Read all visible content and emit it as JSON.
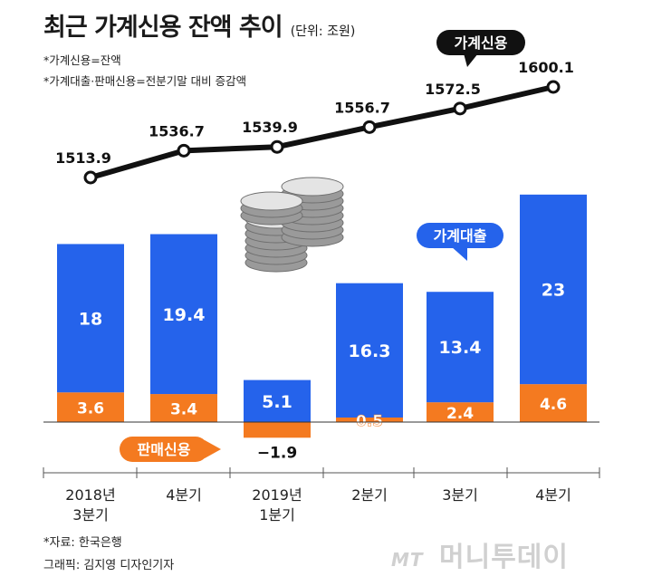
{
  "header": {
    "title": "최근 가계신용 잔액 추이",
    "unit": "(단위: 조원)",
    "notes": [
      "*가계신용=잔액",
      "*가계대출·판매신용=전분기말 대비 증감액"
    ]
  },
  "footer": {
    "source": "*자료: 한국은행",
    "credit": "그래픽: 김지영 디자인기자"
  },
  "watermark": {
    "logo": "MT",
    "text": "머니투데이"
  },
  "chart_data": {
    "type": "bar",
    "categories": [
      [
        "2018년",
        "3분기"
      ],
      [
        "4분기"
      ],
      [
        "2019년",
        "1분기"
      ],
      [
        "2분기"
      ],
      [
        "3분기"
      ],
      [
        "4분기"
      ]
    ],
    "series": [
      {
        "name": "가계대출",
        "values": [
          18,
          19.4,
          5.1,
          16.3,
          13.4,
          23
        ],
        "labels": [
          "18",
          "19.4",
          "5.1",
          "16.3",
          "13.4",
          "23"
        ],
        "color": "#2563eb"
      },
      {
        "name": "판매신용",
        "values": [
          3.6,
          3.4,
          -1.9,
          0.5,
          2.4,
          4.6
        ],
        "labels": [
          "3.6",
          "3.4",
          "−1.9",
          "0.5",
          "2.4",
          "4.6"
        ],
        "color": "#f47a20"
      }
    ],
    "line": {
      "name": "가계신용",
      "values": [
        1513.9,
        1536.7,
        1539.9,
        1556.7,
        1572.5,
        1600.1
      ],
      "labels": [
        "1513.9",
        "1536.7",
        "1539.9",
        "1556.7",
        "1572.5",
        "1600.1"
      ],
      "color": "#111111"
    },
    "callout_colors": {
      "가계신용": "#111111",
      "가계대출": "#2563eb",
      "판매신용": "#f47a20"
    }
  }
}
